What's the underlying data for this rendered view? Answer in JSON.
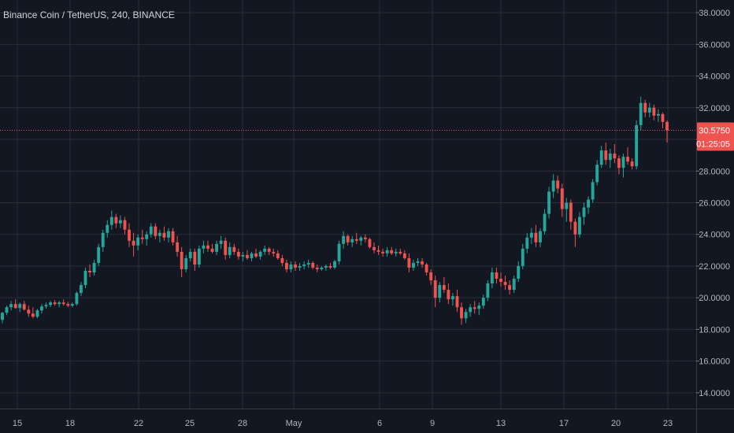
{
  "header": {
    "title": "Binance Coin / TetherUS, 240, BINANCE"
  },
  "price_badge": {
    "value": "30.5750",
    "countdown": "01:25:05"
  },
  "colors": {
    "background": "#131722",
    "grid": "#2a2e39",
    "up": "#26a69a",
    "down": "#ef5350",
    "text": "#b2b5be"
  },
  "chart_data": {
    "type": "candlestick",
    "title": "Binance Coin / TetherUS, 240, BINANCE",
    "interval": "240",
    "ylim": [
      13.0,
      38.8
    ],
    "ylabels": [
      "38.0000",
      "36.0000",
      "34.0000",
      "32.0000",
      "30.0000",
      "28.0000",
      "26.0000",
      "24.0000",
      "22.0000",
      "20.0000",
      "18.0000",
      "16.0000",
      "14.0000"
    ],
    "xlabels": [
      "15",
      "18",
      "22",
      "25",
      "28",
      "May",
      "6",
      "9",
      "13",
      "17",
      "20",
      "23"
    ],
    "last_price": 30.575,
    "grid": true,
    "candles": [
      [
        18.6,
        19.1,
        18.4,
        19.05
      ],
      [
        19.05,
        19.5,
        18.9,
        19.4
      ],
      [
        19.4,
        19.8,
        19.2,
        19.6
      ],
      [
        19.6,
        19.9,
        19.3,
        19.35
      ],
      [
        19.35,
        19.7,
        19.1,
        19.6
      ],
      [
        19.6,
        19.8,
        19.2,
        19.25
      ],
      [
        19.25,
        19.5,
        18.8,
        19.0
      ],
      [
        19.0,
        19.4,
        18.7,
        18.8
      ],
      [
        18.8,
        19.3,
        18.7,
        19.2
      ],
      [
        19.2,
        19.6,
        19.0,
        19.45
      ],
      [
        19.45,
        19.7,
        19.3,
        19.55
      ],
      [
        19.55,
        19.8,
        19.4,
        19.7
      ],
      [
        19.7,
        19.85,
        19.5,
        19.6
      ],
      [
        19.6,
        19.8,
        19.4,
        19.7
      ],
      [
        19.7,
        19.9,
        19.5,
        19.6
      ],
      [
        19.6,
        19.75,
        19.4,
        19.5
      ],
      [
        19.5,
        19.7,
        19.4,
        19.6
      ],
      [
        19.6,
        20.4,
        19.5,
        20.3
      ],
      [
        20.3,
        21.0,
        20.1,
        20.8
      ],
      [
        20.8,
        21.9,
        20.6,
        21.7
      ],
      [
        21.7,
        22.1,
        21.3,
        21.6
      ],
      [
        21.6,
        22.4,
        21.4,
        22.2
      ],
      [
        22.2,
        23.4,
        22.0,
        23.2
      ],
      [
        23.2,
        24.3,
        22.9,
        24.1
      ],
      [
        24.1,
        24.9,
        23.8,
        24.6
      ],
      [
        24.6,
        25.5,
        24.3,
        25.1
      ],
      [
        25.1,
        25.3,
        24.4,
        24.7
      ],
      [
        24.7,
        25.2,
        24.4,
        24.9
      ],
      [
        24.9,
        25.1,
        24.0,
        24.3
      ],
      [
        24.3,
        24.7,
        23.2,
        23.6
      ],
      [
        23.6,
        24.1,
        22.6,
        23.3
      ],
      [
        23.3,
        24.0,
        23.0,
        23.8
      ],
      [
        23.8,
        24.3,
        23.4,
        23.7
      ],
      [
        23.7,
        24.2,
        23.3,
        24.0
      ],
      [
        24.0,
        24.7,
        23.8,
        24.5
      ],
      [
        24.5,
        24.7,
        23.7,
        23.9
      ],
      [
        23.9,
        24.3,
        23.5,
        24.1
      ],
      [
        24.1,
        24.5,
        23.6,
        23.8
      ],
      [
        23.8,
        24.4,
        23.5,
        24.2
      ],
      [
        24.2,
        24.4,
        23.3,
        23.5
      ],
      [
        23.5,
        23.9,
        22.6,
        22.9
      ],
      [
        22.9,
        23.2,
        21.3,
        21.8
      ],
      [
        21.8,
        22.7,
        21.6,
        22.5
      ],
      [
        22.5,
        23.1,
        22.3,
        22.9
      ],
      [
        22.9,
        23.1,
        21.7,
        22.1
      ],
      [
        22.1,
        23.3,
        21.9,
        23.1
      ],
      [
        23.1,
        23.6,
        22.8,
        23.3
      ],
      [
        23.3,
        23.6,
        22.9,
        23.1
      ],
      [
        23.1,
        23.4,
        22.8,
        22.9
      ],
      [
        22.9,
        23.6,
        22.7,
        23.4
      ],
      [
        23.4,
        23.9,
        23.1,
        23.6
      ],
      [
        23.6,
        23.8,
        22.4,
        22.7
      ],
      [
        22.7,
        23.5,
        22.5,
        23.2
      ],
      [
        23.2,
        23.4,
        22.7,
        22.9
      ],
      [
        22.9,
        23.1,
        22.4,
        22.6
      ],
      [
        22.6,
        22.9,
        22.3,
        22.7
      ],
      [
        22.7,
        23.0,
        22.4,
        22.5
      ],
      [
        22.5,
        22.9,
        22.3,
        22.8
      ],
      [
        22.8,
        23.1,
        22.5,
        22.6
      ],
      [
        22.6,
        23.0,
        22.4,
        22.9
      ],
      [
        22.9,
        23.3,
        22.7,
        23.1
      ],
      [
        23.1,
        23.2,
        22.7,
        22.9
      ],
      [
        22.9,
        23.1,
        22.6,
        22.8
      ],
      [
        22.8,
        23.0,
        22.4,
        22.5
      ],
      [
        22.5,
        22.7,
        22.0,
        22.2
      ],
      [
        22.2,
        22.4,
        21.6,
        21.8
      ],
      [
        21.8,
        22.3,
        21.6,
        22.1
      ],
      [
        22.1,
        22.3,
        21.7,
        21.9
      ],
      [
        21.9,
        22.2,
        21.7,
        22.0
      ],
      [
        22.0,
        22.3,
        21.8,
        22.1
      ],
      [
        22.1,
        22.4,
        21.9,
        22.2
      ],
      [
        22.2,
        22.3,
        21.8,
        21.9
      ],
      [
        21.9,
        22.1,
        21.6,
        21.8
      ],
      [
        21.8,
        22.0,
        21.7,
        21.9
      ],
      [
        21.9,
        22.1,
        21.7,
        22.0
      ],
      [
        22.0,
        22.2,
        21.8,
        21.9
      ],
      [
        21.9,
        22.4,
        21.8,
        22.3
      ],
      [
        22.3,
        23.6,
        22.1,
        23.4
      ],
      [
        23.4,
        24.2,
        23.1,
        23.9
      ],
      [
        23.9,
        24.0,
        23.3,
        23.5
      ],
      [
        23.5,
        23.9,
        23.2,
        23.7
      ],
      [
        23.7,
        24.1,
        23.4,
        23.6
      ],
      [
        23.6,
        23.9,
        23.3,
        23.8
      ],
      [
        23.8,
        24.0,
        23.5,
        23.7
      ],
      [
        23.7,
        23.8,
        23.1,
        23.2
      ],
      [
        23.2,
        23.5,
        22.8,
        23.0
      ],
      [
        23.0,
        23.3,
        22.7,
        22.9
      ],
      [
        22.9,
        23.1,
        22.6,
        22.8
      ],
      [
        22.8,
        23.2,
        22.6,
        23.0
      ],
      [
        23.0,
        23.2,
        22.7,
        22.8
      ],
      [
        22.8,
        23.1,
        22.6,
        22.9
      ],
      [
        22.9,
        23.1,
        22.7,
        22.8
      ],
      [
        22.8,
        23.0,
        22.4,
        22.5
      ],
      [
        22.5,
        22.8,
        21.6,
        21.9
      ],
      [
        21.9,
        22.4,
        21.7,
        22.2
      ],
      [
        22.2,
        22.5,
        22.0,
        22.3
      ],
      [
        22.3,
        22.5,
        21.9,
        22.1
      ],
      [
        22.1,
        22.2,
        21.4,
        21.6
      ],
      [
        21.6,
        21.8,
        20.8,
        21.1
      ],
      [
        21.1,
        21.4,
        19.4,
        20.0
      ],
      [
        20.0,
        21.0,
        19.7,
        20.8
      ],
      [
        20.8,
        21.3,
        20.3,
        20.5
      ],
      [
        20.5,
        20.9,
        19.6,
        19.9
      ],
      [
        19.9,
        20.3,
        19.5,
        20.1
      ],
      [
        20.1,
        20.5,
        19.1,
        19.4
      ],
      [
        19.4,
        19.7,
        18.3,
        18.7
      ],
      [
        18.7,
        19.3,
        18.4,
        19.1
      ],
      [
        19.1,
        19.6,
        18.8,
        19.4
      ],
      [
        19.4,
        19.8,
        19.0,
        19.3
      ],
      [
        19.3,
        19.7,
        18.9,
        19.5
      ],
      [
        19.5,
        20.2,
        19.3,
        20.0
      ],
      [
        20.0,
        21.1,
        19.8,
        20.9
      ],
      [
        20.9,
        21.9,
        20.6,
        21.6
      ],
      [
        21.6,
        21.9,
        20.9,
        21.2
      ],
      [
        21.2,
        21.6,
        20.7,
        21.0
      ],
      [
        21.0,
        21.4,
        20.5,
        20.8
      ],
      [
        20.8,
        21.1,
        20.2,
        20.5
      ],
      [
        20.5,
        21.4,
        20.3,
        21.2
      ],
      [
        21.2,
        22.3,
        21.0,
        22.0
      ],
      [
        22.0,
        23.4,
        21.8,
        23.1
      ],
      [
        23.1,
        24.1,
        22.8,
        23.8
      ],
      [
        23.8,
        24.4,
        23.4,
        24.1
      ],
      [
        24.1,
        24.6,
        23.2,
        23.5
      ],
      [
        23.5,
        24.4,
        23.2,
        24.2
      ],
      [
        24.2,
        25.6,
        24.0,
        25.3
      ],
      [
        25.3,
        27.0,
        25.0,
        26.7
      ],
      [
        26.7,
        27.8,
        26.3,
        27.4
      ],
      [
        27.4,
        27.7,
        26.6,
        26.9
      ],
      [
        26.9,
        27.2,
        25.1,
        25.6
      ],
      [
        25.6,
        26.3,
        24.8,
        26.0
      ],
      [
        26.0,
        26.2,
        24.3,
        24.8
      ],
      [
        24.8,
        25.0,
        23.2,
        24.0
      ],
      [
        24.0,
        25.4,
        23.8,
        25.1
      ],
      [
        25.1,
        26.0,
        24.6,
        25.7
      ],
      [
        25.7,
        26.4,
        25.3,
        26.2
      ],
      [
        26.2,
        27.5,
        26.0,
        27.3
      ],
      [
        27.3,
        28.7,
        27.1,
        28.4
      ],
      [
        28.4,
        29.6,
        28.2,
        29.3
      ],
      [
        29.3,
        29.8,
        28.4,
        28.7
      ],
      [
        28.7,
        29.4,
        28.2,
        29.1
      ],
      [
        29.1,
        29.7,
        28.5,
        28.8
      ],
      [
        28.8,
        29.0,
        27.8,
        28.2
      ],
      [
        28.2,
        29.1,
        27.6,
        28.9
      ],
      [
        28.9,
        29.5,
        28.4,
        28.6
      ],
      [
        28.6,
        28.8,
        28.1,
        28.3
      ],
      [
        28.3,
        31.2,
        28.1,
        30.9
      ],
      [
        30.9,
        32.7,
        30.6,
        32.3
      ],
      [
        32.3,
        32.5,
        31.4,
        31.7
      ],
      [
        31.7,
        32.3,
        31.4,
        32.0
      ],
      [
        32.0,
        32.2,
        31.2,
        31.5
      ],
      [
        31.5,
        31.9,
        31.1,
        31.6
      ],
      [
        31.6,
        31.7,
        30.7,
        31.1
      ],
      [
        31.1,
        31.2,
        29.8,
        30.575
      ]
    ]
  }
}
